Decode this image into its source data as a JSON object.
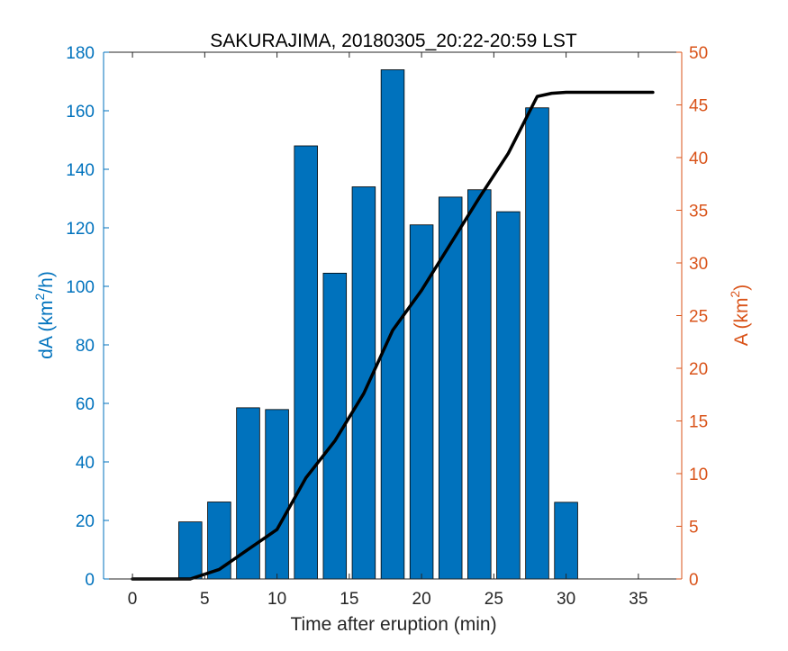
{
  "chart_data": {
    "type": "bar",
    "title": "SAKURAJIMA, 20180305_20:22-20:59 LST",
    "xlabel": "Time after eruption (min)",
    "ylabel_left": {
      "prefix": "dA (km",
      "sup": "2",
      "suffix": "/h)"
    },
    "ylabel_right": {
      "prefix": "A (km",
      "sup": "2",
      "suffix": ")"
    },
    "xlim": [
      -2,
      38
    ],
    "ylim_left": [
      0,
      180
    ],
    "ylim_right": [
      0,
      50
    ],
    "x_ticks": [
      0,
      5,
      10,
      15,
      20,
      25,
      30,
      35
    ],
    "y_ticks_left": [
      0,
      20,
      40,
      60,
      80,
      100,
      120,
      140,
      160,
      180
    ],
    "y_ticks_right": [
      0,
      5,
      10,
      15,
      20,
      25,
      30,
      35,
      40,
      45,
      50
    ],
    "grid": false,
    "colors": {
      "bars": "#0072BD",
      "left_axis": "#0072BD",
      "right_axis": "#D95319",
      "line": "#000000"
    },
    "bar_width": 1.6,
    "bars": {
      "x": [
        4,
        6,
        8,
        10,
        12,
        14,
        16,
        18,
        20,
        22,
        24,
        26,
        28,
        30
      ],
      "values": [
        19.5,
        26.3,
        58.5,
        57.9,
        148,
        104.5,
        134,
        174,
        121,
        130.5,
        133,
        125.5,
        161,
        26.2
      ]
    },
    "line_series": {
      "x": [
        0,
        4,
        6,
        8,
        10,
        12,
        14,
        16,
        18,
        20,
        22,
        24,
        26,
        28,
        29,
        30,
        32,
        34,
        36
      ],
      "values": [
        0,
        0,
        0.9,
        2.8,
        4.7,
        9.6,
        13.1,
        17.6,
        23.6,
        27.4,
        31.8,
        36.2,
        40.4,
        45.8,
        46.1,
        46.2,
        46.2,
        46.2,
        46.2
      ]
    }
  }
}
